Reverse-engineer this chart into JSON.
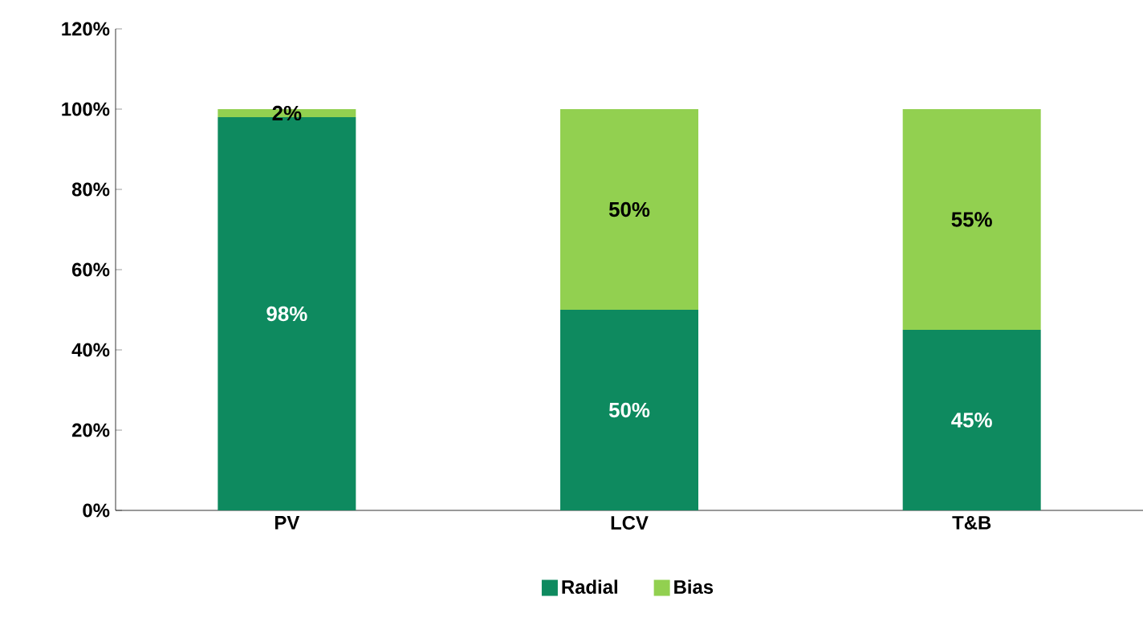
{
  "chart_data": {
    "type": "bar",
    "stacked": true,
    "categories": [
      "PV",
      "LCV",
      "T&B"
    ],
    "series": [
      {
        "name": "Radial",
        "color": "#0e8a5f",
        "values": [
          98,
          50,
          45
        ],
        "value_labels": [
          "98%",
          "50%",
          "45%"
        ]
      },
      {
        "name": "Bias",
        "color": "#92d050",
        "values": [
          2,
          50,
          55
        ],
        "value_labels": [
          "2%",
          "50%",
          "55%"
        ]
      }
    ],
    "ylim": [
      0,
      120
    ],
    "yticks": [
      {
        "value": 0,
        "label": "0%"
      },
      {
        "value": 20,
        "label": "20%"
      },
      {
        "value": 40,
        "label": "40%"
      },
      {
        "value": 60,
        "label": "60%"
      },
      {
        "value": 80,
        "label": "80%"
      },
      {
        "value": 100,
        "label": "100%"
      },
      {
        "value": 120,
        "label": "120%"
      }
    ],
    "legend": "bottom",
    "grid": false
  }
}
